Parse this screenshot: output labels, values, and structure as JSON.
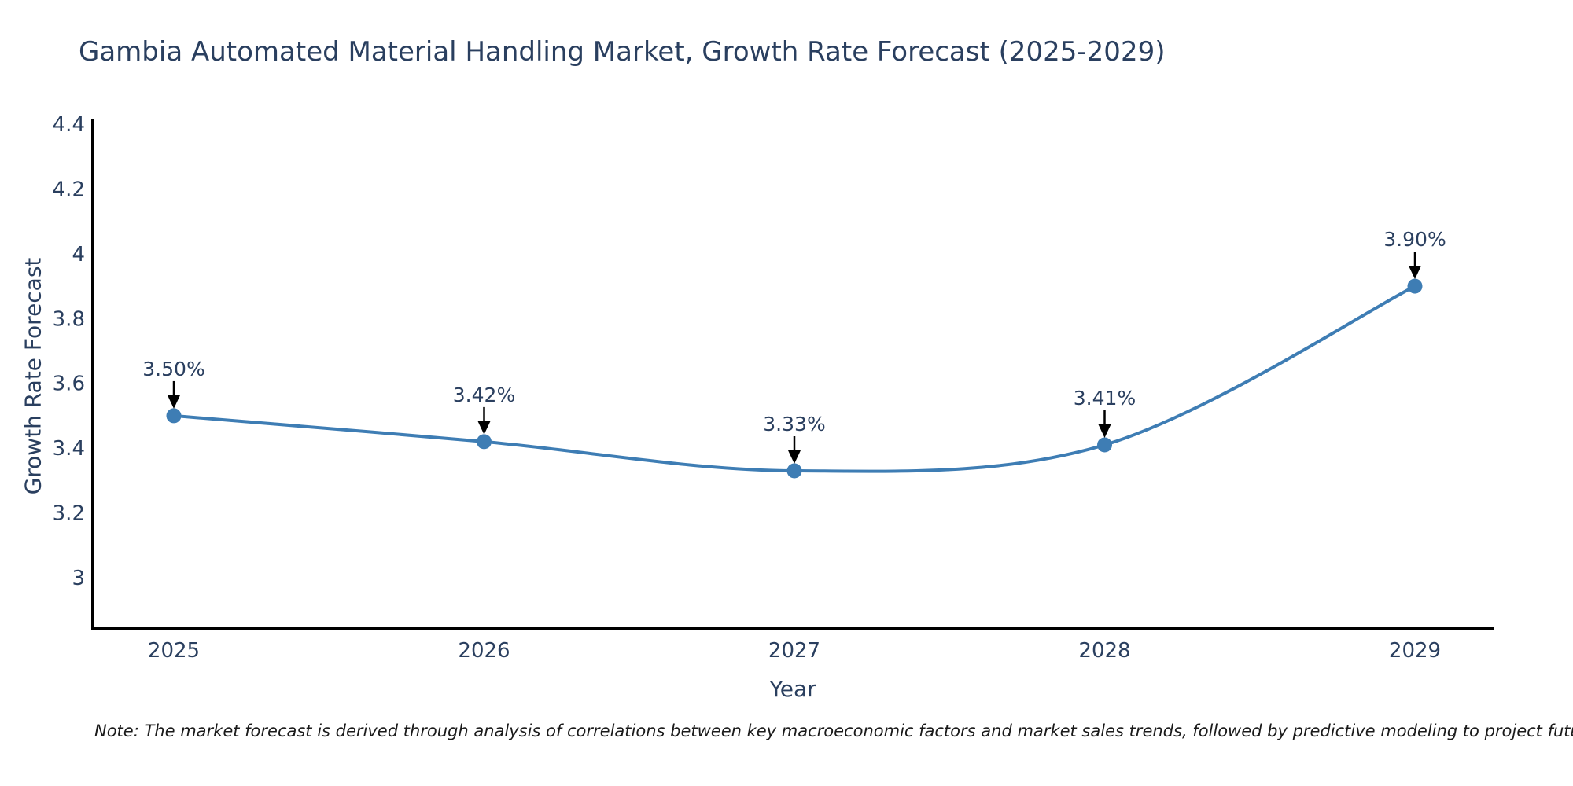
{
  "title": "Gambia Automated Material Handling Market, Growth Rate Forecast (2025-2029)",
  "note": {
    "text": "Note: The market forecast is derived through analysis of correlations between key macroeconomic factors and market sales trends, followed by predictive modeling to project future sales"
  },
  "colors": {
    "text": "#2a3f5f",
    "axis_line": "#000000",
    "line": "#3e7db4",
    "marker": "#3e7db4",
    "arrow": "#000000",
    "background": "#ffffff",
    "note_text": "#1a1a1a"
  },
  "chart_data": {
    "type": "line",
    "curve": "spline",
    "title": "Gambia Automated Material Handling Market, Growth Rate Forecast (2025-2029)",
    "xlabel": "Year",
    "ylabel": "Growth Rate Forecast",
    "x": [
      2025,
      2026,
      2027,
      2028,
      2029
    ],
    "xtick_labels": [
      "2025",
      "2026",
      "2027",
      "2028",
      "2029"
    ],
    "series": [
      {
        "name": "Growth Rate Forecast",
        "values": [
          3.5,
          3.42,
          3.33,
          3.41,
          3.9
        ]
      }
    ],
    "point_labels": [
      "3.50%",
      "3.42%",
      "3.33%",
      "3.41%",
      "3.90%"
    ],
    "ytick_values": [
      4.4,
      4.2,
      4.0,
      3.8,
      3.6,
      3.4,
      3.2,
      3.0
    ],
    "ytick_labels": [
      "4.4",
      "4.2",
      "4",
      "3.8",
      "3.6",
      "3.4",
      "3.2",
      "3"
    ],
    "ylim": [
      2.85,
      4.42
    ],
    "xlim": [
      2024.74,
      2029.25
    ],
    "grid": false,
    "legend_position": "none",
    "annotations_have_arrows": true
  }
}
